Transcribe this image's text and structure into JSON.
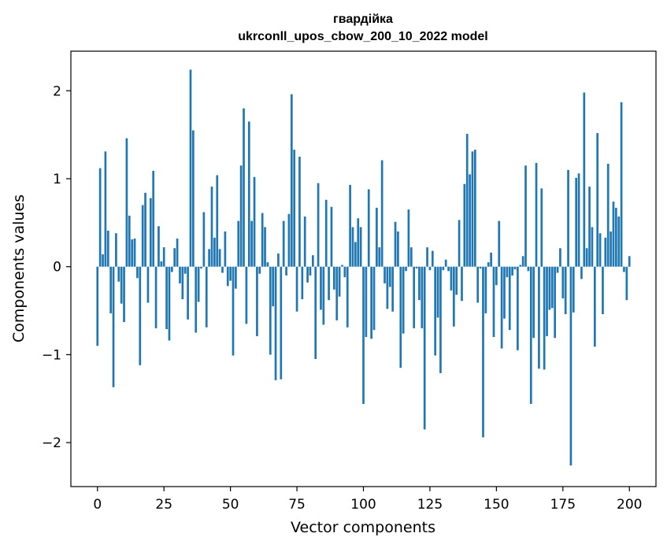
{
  "chart_data": {
    "type": "bar",
    "title": "гвардійка",
    "subtitle": "ukrconll_upos_cbow_200_10_2022 model",
    "xlabel": "Vector components",
    "ylabel": "Components values",
    "xlim": [
      -10,
      210
    ],
    "ylim": [
      -2.5,
      2.45
    ],
    "xticks": [
      0,
      25,
      50,
      75,
      100,
      125,
      150,
      175,
      200
    ],
    "yticks": [
      -2,
      -1,
      0,
      1,
      2
    ],
    "ytick_labels": [
      "−2",
      "−1",
      "0",
      "1",
      "2"
    ],
    "bar_color": "#1f77b4",
    "grid": false,
    "values": [
      -0.9,
      1.12,
      0.14,
      1.31,
      0.41,
      -0.53,
      -1.37,
      0.38,
      -0.17,
      -0.42,
      -0.63,
      1.46,
      0.58,
      0.31,
      0.32,
      -0.13,
      -1.12,
      0.7,
      0.84,
      -0.41,
      0.78,
      1.09,
      -0.7,
      0.46,
      0.06,
      0.22,
      -0.71,
      -0.84,
      -0.06,
      0.21,
      0.32,
      -0.19,
      -0.37,
      -0.08,
      -0.6,
      2.24,
      1.55,
      -0.75,
      -0.4,
      -0.02,
      0.62,
      -0.69,
      0.2,
      0.91,
      0.33,
      1.04,
      0.2,
      -0.07,
      0.4,
      -0.22,
      -0.16,
      -1.01,
      -0.25,
      0.52,
      1.15,
      1.8,
      -0.65,
      1.65,
      0.52,
      1.02,
      -0.79,
      -0.08,
      0.61,
      0.45,
      0.05,
      -1.0,
      -0.45,
      -1.29,
      0.15,
      -1.28,
      0.52,
      -0.1,
      0.6,
      1.96,
      1.33,
      -0.51,
      1.25,
      -0.37,
      0.57,
      -0.18,
      -0.1,
      0.13,
      -1.05,
      0.95,
      -0.49,
      -0.66,
      0.76,
      -0.38,
      0.68,
      -0.26,
      -0.61,
      -0.34,
      0.02,
      -0.12,
      -0.69,
      0.93,
      0.45,
      0.28,
      0.55,
      0.45,
      -1.56,
      -0.8,
      0.88,
      -0.82,
      -0.72,
      0.67,
      0.22,
      1.21,
      -0.19,
      -0.48,
      -0.23,
      -0.51,
      0.51,
      0.4,
      -1.15,
      -0.76,
      -0.05,
      0.65,
      0.22,
      -0.7,
      -0.02,
      -0.38,
      -0.7,
      -1.85,
      0.22,
      -0.04,
      0.18,
      -1.01,
      -0.58,
      -1.21,
      -0.04,
      0.08,
      -0.05,
      -0.27,
      -0.68,
      -0.32,
      0.53,
      -0.39,
      0.94,
      1.51,
      1.05,
      1.31,
      1.33,
      -0.41,
      -0.02,
      -1.94,
      -0.53,
      0.05,
      0.16,
      -0.8,
      -0.21,
      0.52,
      -0.93,
      -0.59,
      -0.12,
      -0.72,
      -0.1,
      -0.03,
      -0.95,
      0.02,
      0.12,
      1.15,
      -0.05,
      -1.56,
      -0.81,
      1.18,
      -1.16,
      0.89,
      -1.17,
      -0.79,
      -0.49,
      -0.47,
      -0.81,
      -0.07,
      0.21,
      -0.36,
      -0.54,
      1.1,
      -2.26,
      -0.52,
      1.01,
      1.06,
      -0.14,
      1.98,
      0.21,
      0.91,
      0.45,
      -0.91,
      1.52,
      0.38,
      -0.54,
      0.33,
      1.17,
      0.4,
      0.74,
      0.67,
      0.57,
      1.87,
      -0.06,
      -0.38,
      0.12
    ]
  }
}
